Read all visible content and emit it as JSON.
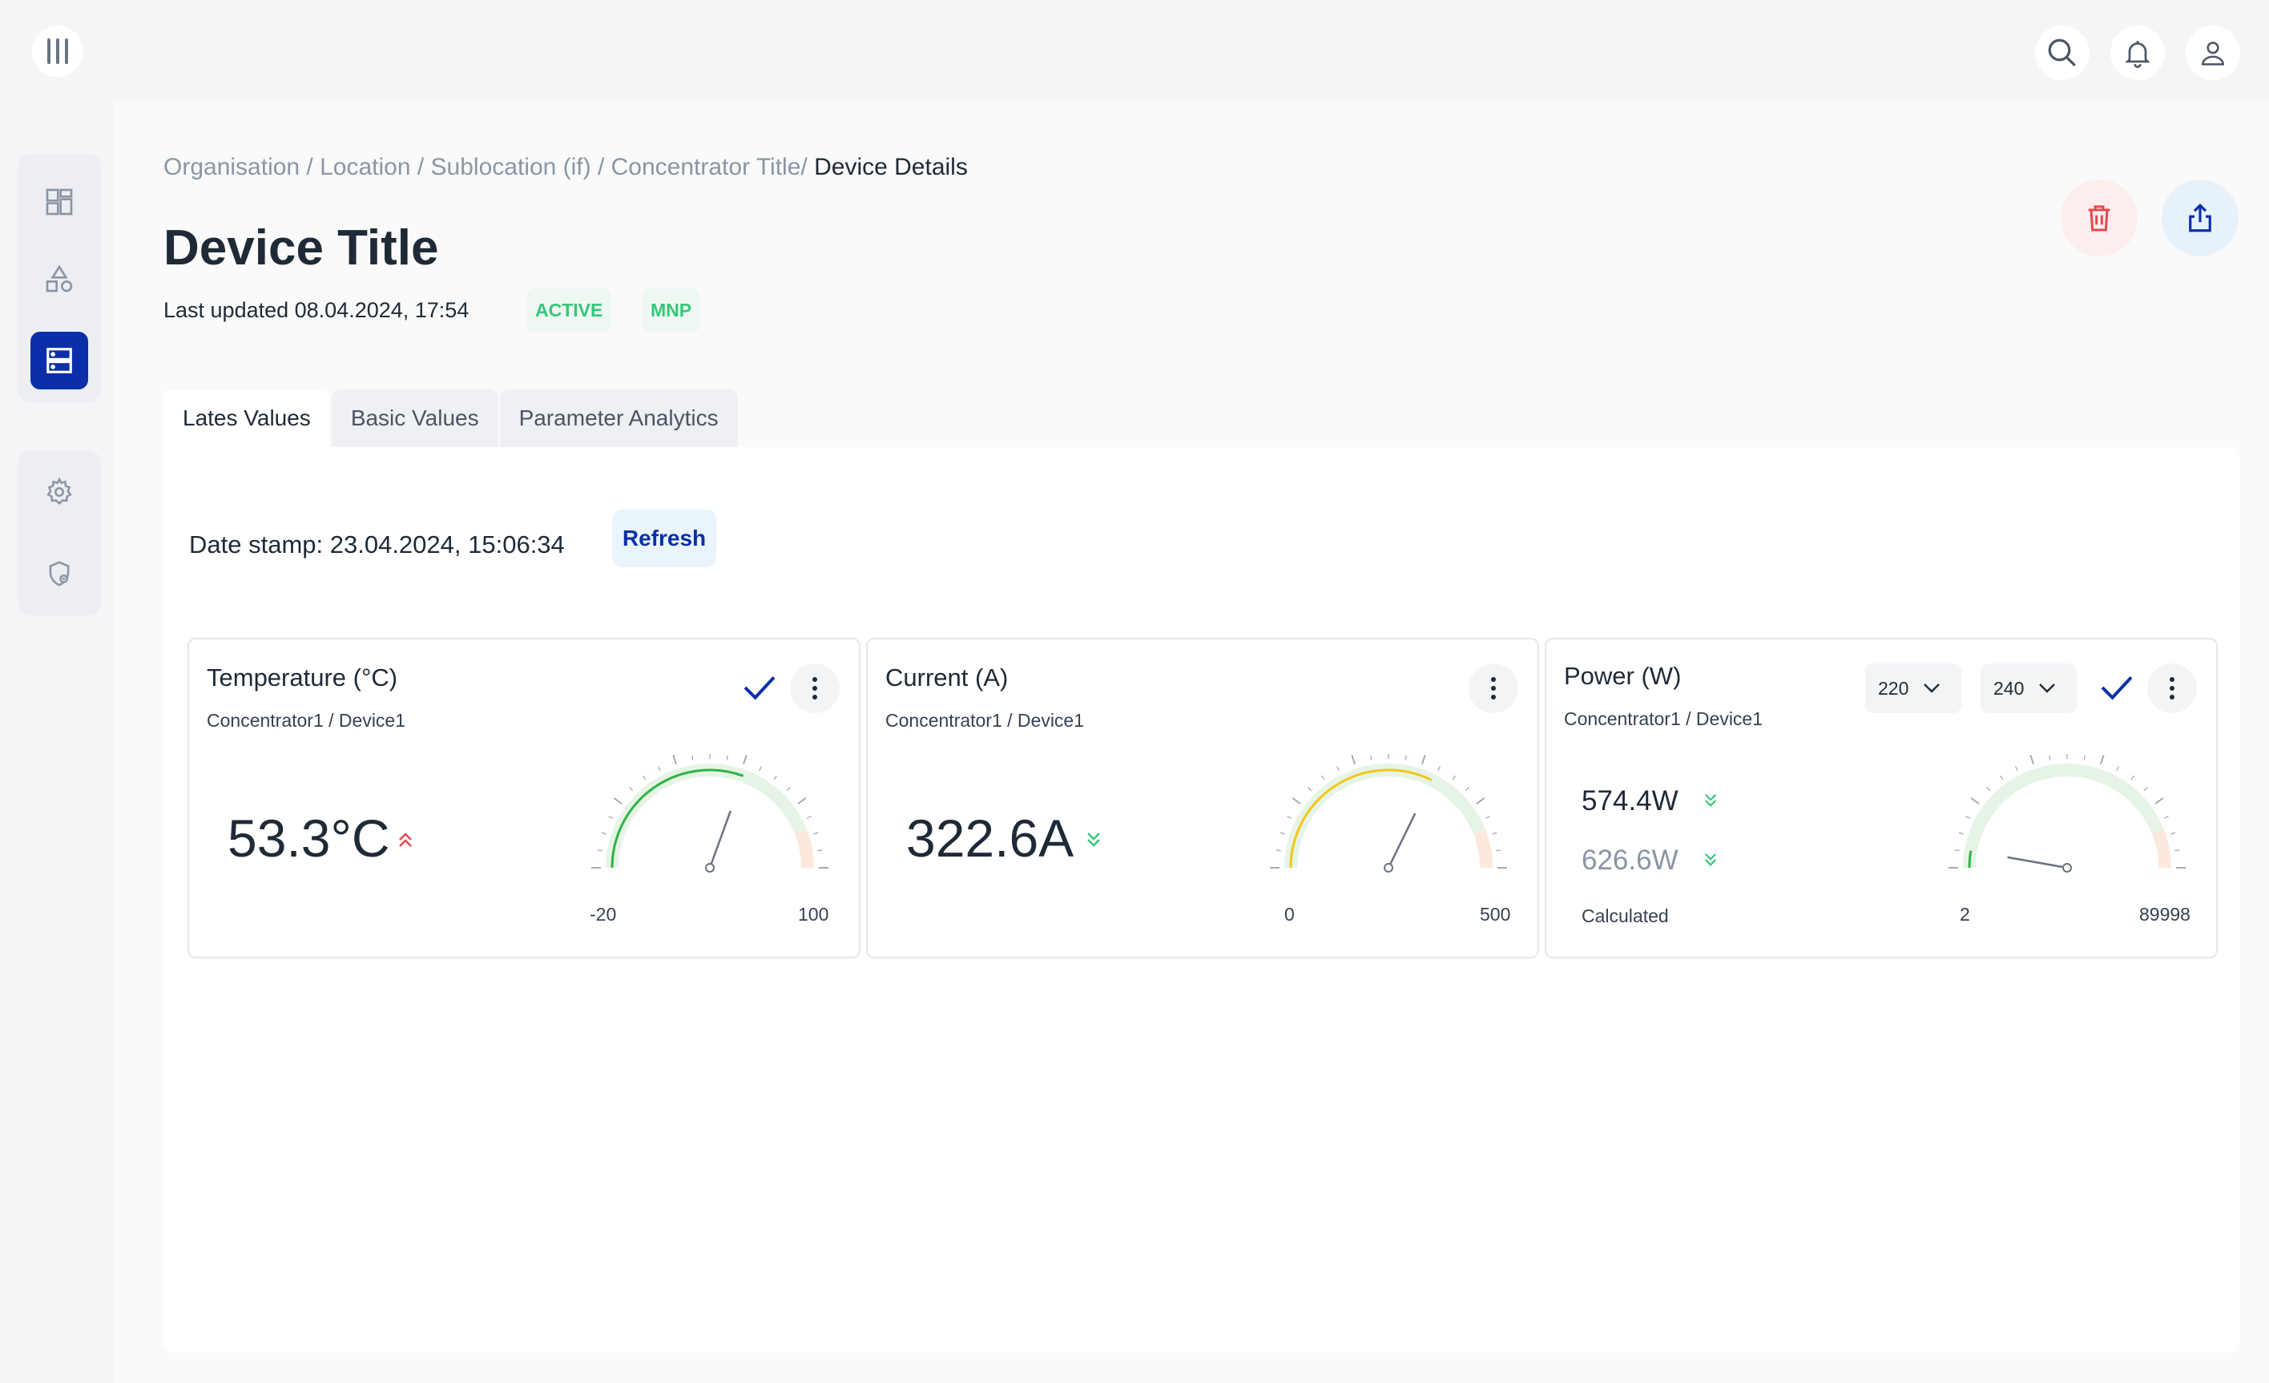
{
  "header": {
    "icons": [
      "menu-icon",
      "search-icon",
      "bell-icon",
      "user-icon"
    ]
  },
  "sidebar": {
    "items": [
      {
        "icon": "dashboard-icon",
        "active": false
      },
      {
        "icon": "shapes-icon",
        "active": false
      },
      {
        "icon": "server-icon",
        "active": true
      },
      {
        "icon": "gear-icon",
        "active": false
      },
      {
        "icon": "shield-icon",
        "active": false
      }
    ]
  },
  "breadcrumb": {
    "path": "Organisation / Location / Sublocation (if) / Concentrator Title/",
    "current": "Device Details"
  },
  "page": {
    "title": "Device Title",
    "last_updated": "Last updated 08.04.2024, 17:54",
    "badges": [
      "ACTIVE",
      "MNP"
    ]
  },
  "actions": {
    "delete_icon": "trash-icon",
    "share_icon": "share-icon"
  },
  "tabs": [
    {
      "label": "Lates Values",
      "active": true
    },
    {
      "label": "Basic Values",
      "active": false
    },
    {
      "label": "Parameter Analytics",
      "active": false
    }
  ],
  "panel": {
    "datestamp": "Date stamp: 23.04.2024, 15:06:34",
    "refresh_label": "Refresh"
  },
  "cards": [
    {
      "title": "Temperature (°C)",
      "subtitle": "Concentrator1 / Device1",
      "value": "53.3°C",
      "trend": "up",
      "trend_color": "#e5484d",
      "gauge": {
        "min": "-20",
        "max": "100",
        "value": 53.3,
        "fill_color": "#2fb344",
        "range": [
          -20,
          100
        ]
      }
    },
    {
      "title": "Current (A)",
      "subtitle": "Concentrator1 / Device1",
      "value": "322.6A",
      "trend": "down",
      "trend_color": "#34c77b",
      "gauge": {
        "min": "0",
        "max": "500",
        "value": 322.6,
        "fill_color": "#f5c518",
        "range": [
          0,
          500
        ]
      }
    },
    {
      "title": "Power (W)",
      "subtitle": "Concentrator1 / Device1",
      "values": [
        {
          "value": "574.4W",
          "color": "#1f2a37",
          "trend": "down"
        },
        {
          "value": "626.6W",
          "color": "#8b95a5",
          "trend": "down"
        }
      ],
      "calc_label": "Calculated",
      "selects": [
        "220",
        "240"
      ],
      "gauge": {
        "min": "2",
        "max": "89998",
        "value": 5000,
        "fill_color": "#2fb344",
        "range": [
          2,
          89998
        ]
      }
    }
  ],
  "colors": {
    "accent": "#0a2fa8",
    "success": "#34c77b",
    "danger": "#e5484d"
  }
}
